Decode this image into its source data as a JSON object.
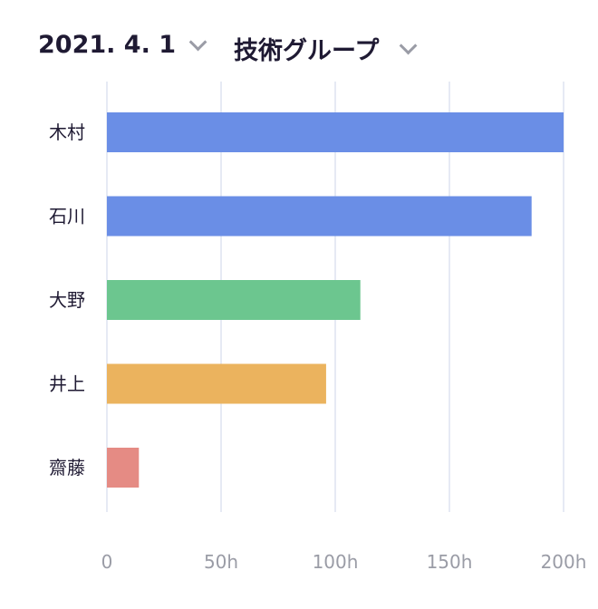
{
  "header": {
    "date": "2021. 4. 1",
    "group": "技術グループ"
  },
  "chart_data": {
    "type": "bar",
    "orientation": "horizontal",
    "categories": [
      "木村",
      "石川",
      "大野",
      "井上",
      "齋藤"
    ],
    "values": [
      200,
      186,
      111,
      96,
      14
    ],
    "colors": [
      "#6a8ee6",
      "#6a8ee6",
      "#6cc68f",
      "#ebb35e",
      "#e58b84"
    ],
    "xticks": [
      0,
      50,
      100,
      150,
      200
    ],
    "xtick_labels": [
      "0",
      "50h",
      "100h",
      "150h",
      "200h"
    ],
    "xlim": [
      0,
      200
    ],
    "grid": true,
    "grid_color": "#dde3f0"
  }
}
